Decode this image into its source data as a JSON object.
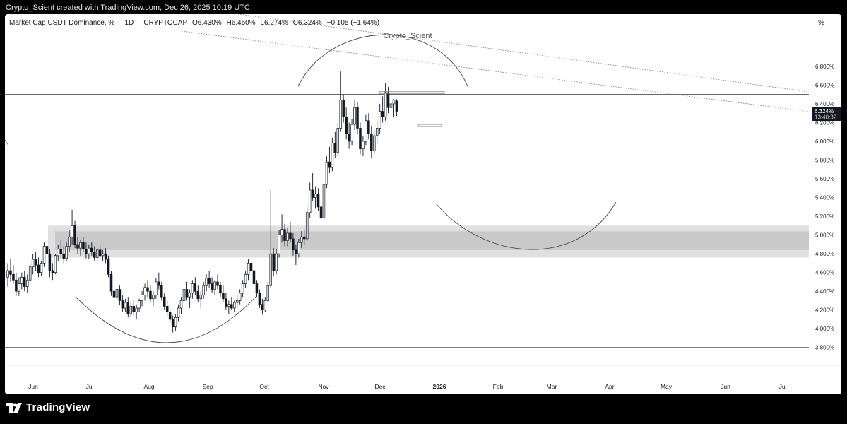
{
  "header": {
    "attribution": "Crypto_Scient created with TradingView.com, Dec 26, 2025 10:19 UTC"
  },
  "legend": {
    "symbol": "Market Cap USDT Dominance, %",
    "interval": "1D",
    "exchange": "CRYPTOCAP",
    "open": "O6.430%",
    "high": "H6.450%",
    "low": "L6.274%",
    "close": "C6.324%",
    "change": "−0.105 (−1.64%)"
  },
  "axis_unit": "%",
  "watermark": "Crypto_Scient",
  "last_price": {
    "value": "6.324%",
    "countdown": "13:40:32"
  },
  "footer": {
    "brand": "TradingView"
  },
  "colors": {
    "candle": "#131722",
    "zone_outer": "#e0e0e0",
    "zone_inner": "#c9c9c9",
    "price_tag": "#131722"
  },
  "chart_data": {
    "type": "candlestick",
    "ylim": [
      3.7,
      6.95
    ],
    "y_ticks": [
      "3.800%",
      "4.000%",
      "4.200%",
      "4.400%",
      "4.600%",
      "4.800%",
      "5.000%",
      "5.200%",
      "5.400%",
      "5.600%",
      "5.800%",
      "6.000%",
      "6.200%",
      "6.400%",
      "6.600%",
      "6.800%"
    ],
    "x_ticks": [
      "Jun",
      "Jul",
      "Aug",
      "Sep",
      "Oct",
      "Nov",
      "Dec",
      "2026",
      "Feb",
      "Mar",
      "Apr",
      "May",
      "Jun",
      "Jul"
    ],
    "horizontal_lines": [
      6.5,
      3.8
    ],
    "zone": {
      "outer": [
        4.76,
        5.1
      ],
      "inner": [
        4.84,
        5.04
      ]
    },
    "series": [
      {
        "values": [
          [
            4.55,
            4.7,
            4.45,
            4.62
          ],
          [
            4.62,
            4.75,
            4.5,
            4.58
          ],
          [
            4.58,
            4.68,
            4.48,
            4.52
          ],
          [
            4.52,
            4.6,
            4.35,
            4.4
          ],
          [
            4.4,
            4.55,
            4.35,
            4.48
          ],
          [
            4.48,
            4.6,
            4.42,
            4.55
          ],
          [
            4.55,
            4.62,
            4.4,
            4.45
          ],
          [
            4.45,
            4.58,
            4.38,
            4.52
          ],
          [
            4.52,
            4.7,
            4.48,
            4.66
          ],
          [
            4.66,
            4.8,
            4.58,
            4.74
          ],
          [
            4.74,
            4.82,
            4.62,
            4.68
          ],
          [
            4.68,
            4.76,
            4.55,
            4.6
          ],
          [
            4.6,
            4.72,
            4.56,
            4.7
          ],
          [
            4.7,
            4.92,
            4.66,
            4.88
          ],
          [
            4.88,
            4.98,
            4.75,
            4.8
          ],
          [
            4.8,
            4.85,
            4.55,
            4.62
          ],
          [
            4.62,
            4.7,
            4.52,
            4.6
          ],
          [
            4.6,
            4.8,
            4.58,
            4.78
          ],
          [
            4.78,
            4.9,
            4.72,
            4.85
          ],
          [
            4.85,
            4.95,
            4.75,
            4.8
          ],
          [
            4.8,
            4.88,
            4.7,
            4.75
          ],
          [
            4.75,
            4.92,
            4.72,
            4.88
          ],
          [
            4.88,
            5.05,
            4.82,
            4.98
          ],
          [
            4.98,
            5.27,
            4.9,
            5.1
          ],
          [
            5.1,
            5.15,
            4.86,
            4.9
          ],
          [
            4.9,
            4.98,
            4.8,
            4.86
          ],
          [
            4.86,
            4.95,
            4.78,
            4.92
          ],
          [
            4.92,
            4.98,
            4.82,
            4.85
          ],
          [
            4.85,
            4.92,
            4.75,
            4.8
          ],
          [
            4.8,
            4.9,
            4.74,
            4.86
          ],
          [
            4.86,
            4.92,
            4.78,
            4.82
          ],
          [
            4.82,
            4.88,
            4.72,
            4.76
          ],
          [
            4.76,
            4.86,
            4.72,
            4.84
          ],
          [
            4.84,
            4.9,
            4.74,
            4.78
          ],
          [
            4.78,
            4.84,
            4.72,
            4.8
          ],
          [
            4.8,
            4.86,
            4.7,
            4.74
          ],
          [
            4.74,
            4.78,
            4.55,
            4.58
          ],
          [
            4.58,
            4.62,
            4.35,
            4.4
          ],
          [
            4.4,
            4.48,
            4.28,
            4.34
          ],
          [
            4.34,
            4.45,
            4.3,
            4.42
          ],
          [
            4.42,
            4.46,
            4.25,
            4.3
          ],
          [
            4.3,
            4.36,
            4.18,
            4.22
          ],
          [
            4.22,
            4.32,
            4.18,
            4.28
          ],
          [
            4.28,
            4.34,
            4.12,
            4.16
          ],
          [
            4.16,
            4.28,
            4.12,
            4.24
          ],
          [
            4.24,
            4.3,
            4.14,
            4.18
          ],
          [
            4.18,
            4.26,
            4.1,
            4.22
          ],
          [
            4.22,
            4.32,
            4.18,
            4.3
          ],
          [
            4.3,
            4.4,
            4.24,
            4.36
          ],
          [
            4.36,
            4.48,
            4.3,
            4.44
          ],
          [
            4.44,
            4.52,
            4.34,
            4.4
          ],
          [
            4.4,
            4.46,
            4.28,
            4.32
          ],
          [
            4.32,
            4.4,
            4.24,
            4.36
          ],
          [
            4.36,
            4.54,
            4.32,
            4.5
          ],
          [
            4.5,
            4.6,
            4.42,
            4.46
          ],
          [
            4.46,
            4.5,
            4.3,
            4.34
          ],
          [
            4.34,
            4.38,
            4.2,
            4.24
          ],
          [
            4.24,
            4.3,
            4.14,
            4.18
          ],
          [
            4.18,
            4.22,
            4.06,
            4.1
          ],
          [
            4.1,
            4.14,
            3.96,
            4.02
          ],
          [
            4.02,
            4.16,
            3.98,
            4.12
          ],
          [
            4.12,
            4.26,
            4.08,
            4.22
          ],
          [
            4.22,
            4.34,
            4.16,
            4.3
          ],
          [
            4.3,
            4.46,
            4.24,
            4.42
          ],
          [
            4.42,
            4.5,
            4.3,
            4.34
          ],
          [
            4.34,
            4.42,
            4.22,
            4.38
          ],
          [
            4.38,
            4.52,
            4.32,
            4.48
          ],
          [
            4.48,
            4.55,
            4.36,
            4.4
          ],
          [
            4.4,
            4.46,
            4.28,
            4.32
          ],
          [
            4.32,
            4.4,
            4.22,
            4.36
          ],
          [
            4.36,
            4.5,
            4.32,
            4.46
          ],
          [
            4.46,
            4.58,
            4.4,
            4.54
          ],
          [
            4.54,
            4.62,
            4.44,
            4.48
          ],
          [
            4.48,
            4.55,
            4.38,
            4.42
          ],
          [
            4.42,
            4.52,
            4.36,
            4.5
          ],
          [
            4.5,
            4.58,
            4.42,
            4.46
          ],
          [
            4.46,
            4.5,
            4.34,
            4.38
          ],
          [
            4.38,
            4.46,
            4.28,
            4.32
          ],
          [
            4.32,
            4.38,
            4.2,
            4.24
          ],
          [
            4.24,
            4.3,
            4.16,
            4.26
          ],
          [
            4.26,
            4.34,
            4.2,
            4.22
          ],
          [
            4.22,
            4.3,
            4.18,
            4.28
          ],
          [
            4.28,
            4.36,
            4.22,
            4.3
          ],
          [
            4.3,
            4.42,
            4.26,
            4.38
          ],
          [
            4.38,
            4.52,
            4.34,
            4.48
          ],
          [
            4.48,
            4.62,
            4.44,
            4.58
          ],
          [
            4.58,
            4.74,
            4.52,
            4.7
          ],
          [
            4.7,
            4.76,
            4.58,
            4.62
          ],
          [
            4.62,
            4.66,
            4.44,
            4.48
          ],
          [
            4.48,
            4.52,
            4.34,
            4.38
          ],
          [
            4.38,
            4.42,
            4.22,
            4.26
          ],
          [
            4.26,
            4.32,
            4.15,
            4.2
          ],
          [
            4.2,
            4.34,
            4.18,
            4.3
          ],
          [
            4.3,
            4.5,
            4.28,
            4.46
          ],
          [
            4.46,
            5.48,
            4.44,
            4.8
          ],
          [
            4.8,
            4.86,
            4.56,
            4.62
          ],
          [
            4.62,
            4.85,
            4.58,
            4.8
          ],
          [
            4.8,
            5.05,
            4.76,
            5.0
          ],
          [
            5.0,
            5.22,
            4.92,
            5.06
          ],
          [
            5.06,
            5.12,
            4.88,
            4.94
          ],
          [
            4.94,
            5.08,
            4.88,
            5.02
          ],
          [
            5.02,
            5.14,
            4.92,
            4.96
          ],
          [
            4.96,
            5.02,
            4.78,
            4.84
          ],
          [
            4.84,
            4.9,
            4.68,
            4.8
          ],
          [
            4.8,
            4.96,
            4.76,
            4.92
          ],
          [
            4.92,
            5.04,
            4.86,
            4.98
          ],
          [
            4.98,
            5.06,
            4.9,
            4.96
          ],
          [
            4.96,
            5.3,
            4.94,
            5.24
          ],
          [
            5.24,
            5.56,
            5.18,
            5.48
          ],
          [
            5.48,
            5.66,
            5.36,
            5.4
          ],
          [
            5.4,
            5.52,
            5.28,
            5.44
          ],
          [
            5.44,
            5.5,
            5.26,
            5.3
          ],
          [
            5.3,
            5.36,
            5.12,
            5.18
          ],
          [
            5.18,
            5.6,
            5.14,
            5.54
          ],
          [
            5.54,
            5.84,
            5.5,
            5.78
          ],
          [
            5.78,
            5.94,
            5.66,
            5.72
          ],
          [
            5.72,
            6.04,
            5.68,
            5.98
          ],
          [
            5.98,
            6.1,
            5.82,
            5.88
          ],
          [
            5.88,
            6.2,
            5.84,
            6.14
          ],
          [
            6.14,
            6.75,
            6.1,
            6.44
          ],
          [
            6.44,
            6.5,
            6.2,
            6.26
          ],
          [
            6.26,
            6.36,
            6.02,
            6.08
          ],
          [
            6.08,
            6.2,
            5.92,
            6.0
          ],
          [
            6.0,
            6.24,
            5.96,
            6.18
          ],
          [
            6.18,
            6.44,
            6.12,
            6.36
          ],
          [
            6.36,
            6.42,
            6.08,
            6.14
          ],
          [
            6.14,
            6.2,
            5.86,
            5.92
          ],
          [
            5.92,
            6.06,
            5.84,
            6.0
          ],
          [
            6.0,
            6.28,
            5.96,
            6.22
          ],
          [
            6.22,
            6.3,
            6.02,
            6.08
          ],
          [
            6.08,
            6.16,
            5.82,
            5.9
          ],
          [
            5.9,
            6.12,
            5.86,
            6.06
          ],
          [
            6.06,
            6.22,
            5.98,
            6.14
          ],
          [
            6.14,
            6.4,
            6.08,
            6.32
          ],
          [
            6.32,
            6.48,
            6.2,
            6.26
          ],
          [
            6.26,
            6.62,
            6.22,
            6.52
          ],
          [
            6.52,
            6.58,
            6.3,
            6.36
          ],
          [
            6.36,
            6.44,
            6.2,
            6.4
          ],
          [
            6.4,
            6.45,
            6.26,
            6.44
          ],
          [
            6.43,
            6.45,
            6.27,
            6.32
          ]
        ]
      }
    ]
  }
}
